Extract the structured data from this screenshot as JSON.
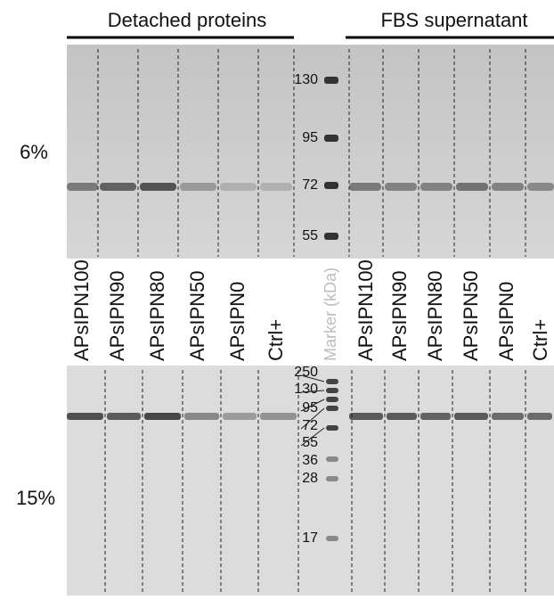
{
  "groups": [
    "Detached proteins",
    "FBS supernatant"
  ],
  "gels": [
    {
      "label": "6%",
      "markers": [
        "130",
        "95",
        "72",
        "55"
      ]
    },
    {
      "label": "15%",
      "markers": [
        "250",
        "130",
        "95",
        "72",
        "55",
        "36",
        "28",
        "17"
      ]
    }
  ],
  "lanes": [
    "APsIPN100",
    "APsIPN90",
    "APsIPN80",
    "APsIPN50",
    "APsIPN0",
    "Ctrl+",
    "Marker (kDa)",
    "APsIPN100",
    "APsIPN90",
    "APsIPN80",
    "APsIPN50",
    "APsIPN0",
    "Ctrl+"
  ]
}
